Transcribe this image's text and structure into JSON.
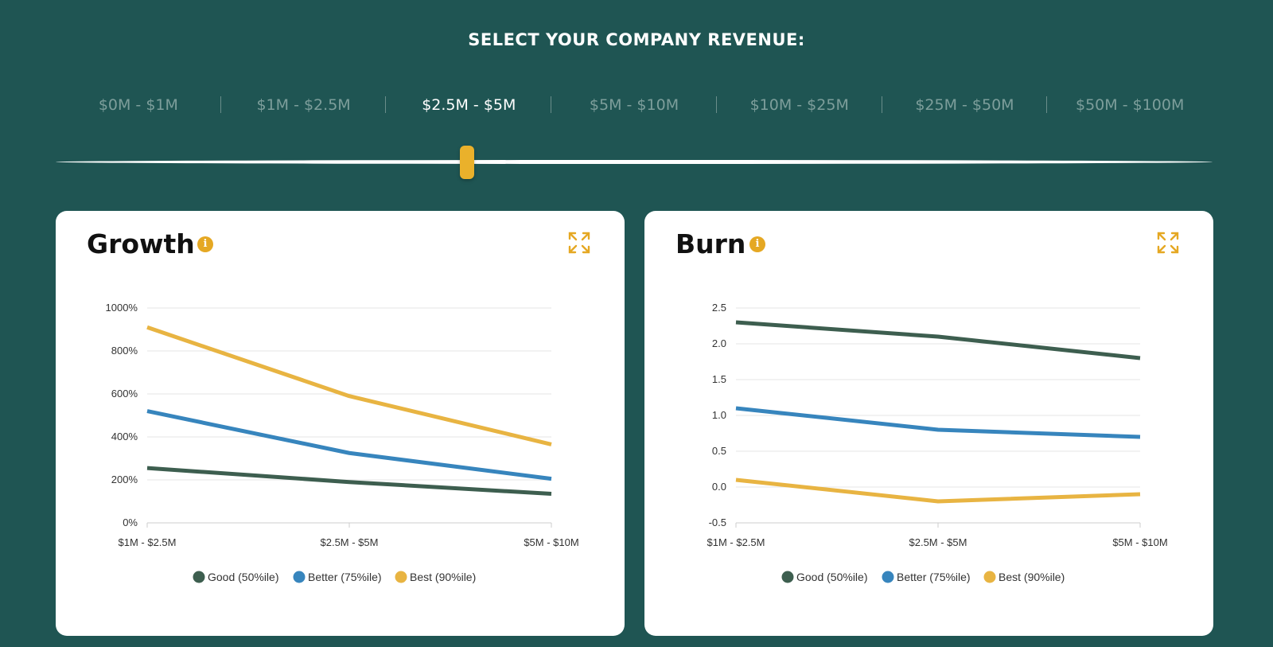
{
  "selector": {
    "heading": "SELECT YOUR COMPANY REVENUE:",
    "ranges": [
      "$0M - $1M",
      "$1M - $2.5M",
      "$2.5M - $5M",
      "$5M - $10M",
      "$10M - $25M",
      "$25M - $50M",
      "$50M - $100M"
    ],
    "selected_index": 2
  },
  "colors": {
    "background": "#1f5553",
    "accent": "#eab12b",
    "good": "#3d5e4f",
    "better": "#3785bd",
    "best": "#e8b442"
  },
  "chart_data": [
    {
      "type": "line",
      "title": "Growth",
      "categories": [
        "$1M - $2.5M",
        "$2.5M - $5M",
        "$5M - $10M"
      ],
      "yticks": [
        "0%",
        "200%",
        "400%",
        "600%",
        "800%",
        "1000%"
      ],
      "ylim": [
        0,
        1000
      ],
      "series": [
        {
          "name": "Good (50%ile)",
          "values": [
            255,
            190,
            135
          ]
        },
        {
          "name": "Better (75%ile)",
          "values": [
            520,
            325,
            205
          ]
        },
        {
          "name": "Best (90%ile)",
          "values": [
            910,
            590,
            365
          ]
        }
      ],
      "legend_position": "bottom"
    },
    {
      "type": "line",
      "title": "Burn",
      "categories": [
        "$1M - $2.5M",
        "$2.5M - $5M",
        "$5M - $10M"
      ],
      "yticks": [
        "-0.5",
        "0.0",
        "0.5",
        "1.0",
        "1.5",
        "2.0",
        "2.5"
      ],
      "ylim": [
        -0.5,
        2.5
      ],
      "series": [
        {
          "name": "Good (50%ile)",
          "values": [
            2.3,
            2.1,
            1.8
          ]
        },
        {
          "name": "Better (75%ile)",
          "values": [
            1.1,
            0.8,
            0.7
          ]
        },
        {
          "name": "Best (90%ile)",
          "values": [
            0.1,
            -0.2,
            -0.1
          ]
        }
      ],
      "legend_position": "bottom"
    }
  ],
  "icons": {
    "info": "info-icon",
    "expand": "expand-icon"
  },
  "info_glyph": "i"
}
